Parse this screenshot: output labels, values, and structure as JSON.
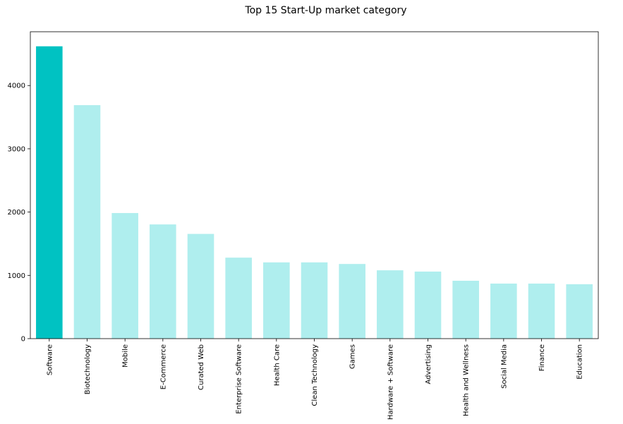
{
  "chart_data": {
    "type": "bar",
    "title": "Top 15 Start-Up market category",
    "xlabel": "",
    "ylabel": "",
    "categories": [
      "Software",
      "Biotechnology",
      "Mobile",
      "E-Commerce",
      "Curated Web",
      "Enterprise Software",
      "Health Care",
      "Clean Technology",
      "Games",
      "Hardware + Software",
      "Advertising",
      "Health and Wellness",
      "Social Media",
      "Finance",
      "Education"
    ],
    "values": [
      4620,
      3690,
      1985,
      1805,
      1655,
      1280,
      1205,
      1205,
      1180,
      1080,
      1060,
      915,
      870,
      870,
      860
    ],
    "ylim": [
      0,
      4850
    ],
    "yticks": [
      0,
      1000,
      2000,
      3000,
      4000
    ],
    "grid": false,
    "colors": {
      "highlight": "#00c2c2",
      "default": "#afeeee"
    },
    "highlight_index": 0
  }
}
